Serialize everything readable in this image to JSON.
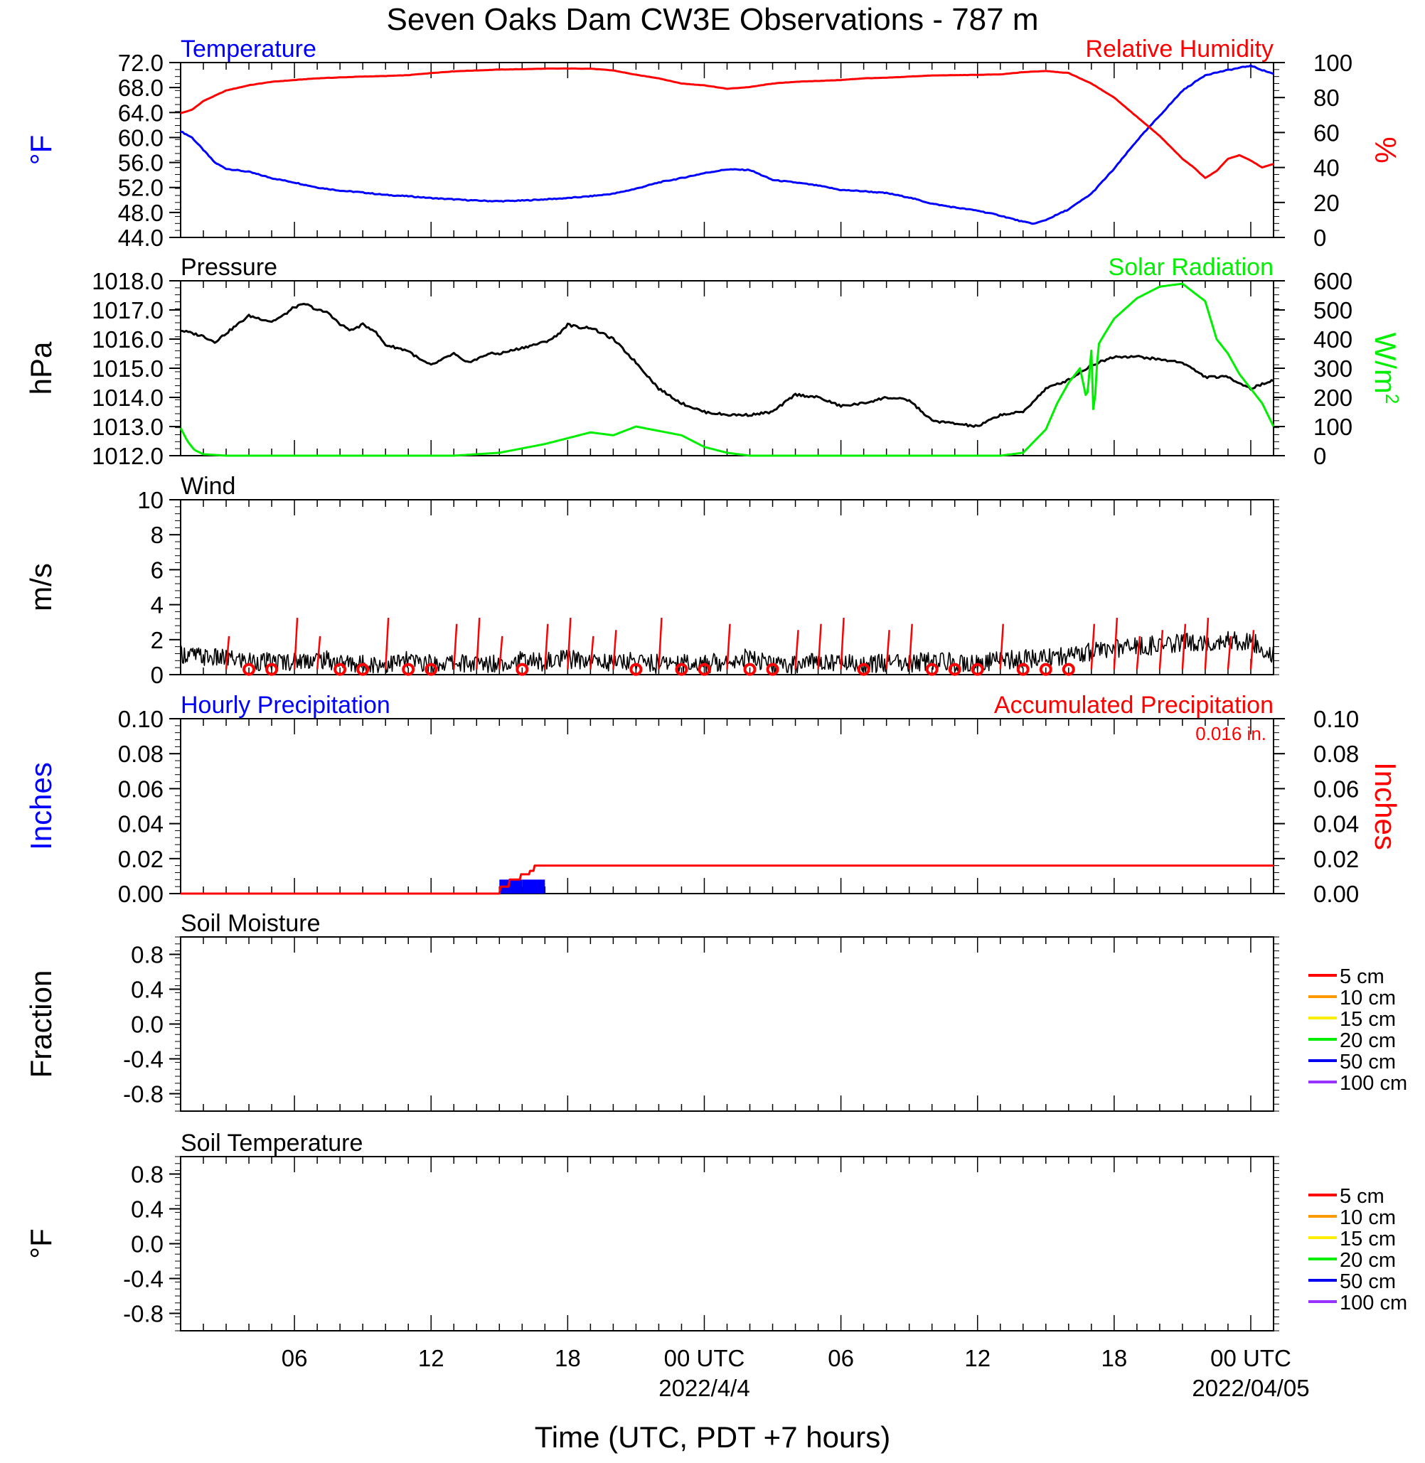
{
  "page": {
    "title": "Seven Oaks Dam CW3E Observations - 787 m",
    "xlabel": "Time (UTC, PDT +7 hours)"
  },
  "colors": {
    "black": "#000000",
    "red": "#ff0000",
    "blue": "#0000ff",
    "green": "#00ee00",
    "depth_5": "#ff0000",
    "depth_10": "#ff9900",
    "depth_15": "#ffee00",
    "depth_20": "#00ee00",
    "depth_50": "#0000ee",
    "depth_100": "#9933ff"
  },
  "time_axis": {
    "range_hours": [
      0,
      48
    ],
    "tick_labels": [
      {
        "hour": 5,
        "label": "06"
      },
      {
        "hour": 11,
        "label": "12"
      },
      {
        "hour": 17,
        "label": "18"
      },
      {
        "hour": 23,
        "label": "00 UTC",
        "sublabel": "2022/4/4"
      },
      {
        "hour": 29,
        "label": "06"
      },
      {
        "hour": 35,
        "label": "12"
      },
      {
        "hour": 41,
        "label": "18"
      },
      {
        "hour": 47,
        "label": "00 UTC",
        "sublabel": "2022/04/05"
      }
    ]
  },
  "chart_data": [
    {
      "panel": "temperature_humidity",
      "type": "line",
      "title_left": "Temperature",
      "title_right": "Relative Humidity",
      "ylabel_left": "°F",
      "ylabel_right": "%",
      "ylim_left": [
        44,
        72
      ],
      "ylim_right": [
        0,
        100
      ],
      "yticks_left": [
        "72.0",
        "68.0",
        "64.0",
        "60.0",
        "56.0",
        "52.0",
        "48.0",
        "44.0"
      ],
      "yticks_right": [
        "100",
        "80",
        "60",
        "40",
        "20",
        "0"
      ],
      "series": [
        {
          "name": "Temperature",
          "axis": "left",
          "color": "blue",
          "x": [
            0,
            0.5,
            1,
            1.5,
            2,
            3,
            4,
            5,
            6,
            7,
            8,
            9,
            10,
            11,
            12,
            13,
            14,
            15,
            16,
            17,
            18,
            19,
            20,
            21,
            22,
            23,
            24,
            25,
            25.5,
            26,
            27,
            28,
            29,
            30,
            31,
            32,
            33,
            34,
            35,
            36,
            37,
            37.5,
            38,
            39,
            40,
            41,
            42,
            43,
            44,
            45,
            46,
            47,
            47.5,
            48
          ],
          "y": [
            61.0,
            60.0,
            58.0,
            56.0,
            55.0,
            54.5,
            53.5,
            52.8,
            52.0,
            51.5,
            51.2,
            50.8,
            50.6,
            50.3,
            50.1,
            49.9,
            49.8,
            49.9,
            50.1,
            50.3,
            50.6,
            51.0,
            51.8,
            52.8,
            53.5,
            54.3,
            54.9,
            54.8,
            54.0,
            53.2,
            52.8,
            52.3,
            51.6,
            51.4,
            51.1,
            50.4,
            49.4,
            48.8,
            48.3,
            47.5,
            46.5,
            46.2,
            46.8,
            48.5,
            51.0,
            55.0,
            59.5,
            63.5,
            67.5,
            70.0,
            70.8,
            71.5,
            70.8,
            70.2
          ]
        },
        {
          "name": "Relative Humidity",
          "axis": "right",
          "color": "red",
          "x": [
            0,
            0.5,
            1,
            1.5,
            2,
            3,
            4,
            5,
            6,
            7,
            8,
            9,
            10,
            11,
            12,
            13,
            14,
            15,
            16,
            17,
            18,
            19,
            20,
            21,
            22,
            23,
            24,
            25,
            26,
            27,
            28,
            29,
            30,
            31,
            32,
            33,
            34,
            35,
            36,
            37,
            38,
            39,
            40,
            41,
            42,
            43,
            44,
            44.5,
            45,
            45.5,
            46,
            46.5,
            47,
            47.5,
            48
          ],
          "y": [
            71,
            73,
            78,
            81,
            84,
            87,
            89,
            90,
            91,
            91.5,
            92,
            92.3,
            92.8,
            94,
            95,
            95.5,
            96,
            96.2,
            96.5,
            96.6,
            96.5,
            95.5,
            93,
            91,
            88,
            87,
            85,
            86,
            88,
            89,
            89.5,
            90,
            91,
            91.3,
            92,
            92.6,
            92.8,
            93,
            93.2,
            94.5,
            95.2,
            94,
            88,
            80,
            69,
            58,
            45,
            40,
            34,
            38,
            45,
            47,
            44,
            40,
            42
          ]
        }
      ]
    },
    {
      "panel": "pressure_solar",
      "type": "line",
      "title_left": "Pressure",
      "title_right": "Solar Radiation",
      "ylabel_left": "hPa",
      "ylabel_right": "W/m",
      "ylabel_right_sup": "2",
      "ylim_left": [
        1012,
        1018
      ],
      "ylim_right": [
        0,
        600
      ],
      "yticks_left": [
        "1018.0",
        "1017.0",
        "1016.0",
        "1015.0",
        "1014.0",
        "1013.0",
        "1012.0"
      ],
      "yticks_right": [
        "600",
        "500",
        "400",
        "300",
        "200",
        "100",
        "0"
      ],
      "series": [
        {
          "name": "Pressure",
          "axis": "left",
          "color": "black",
          "x": [
            0,
            0.5,
            1,
            1.5,
            2,
            2.5,
            3,
            3.5,
            4,
            4.5,
            5,
            5.5,
            6,
            6.5,
            7,
            7.5,
            8,
            8.5,
            9,
            9.5,
            10,
            10.5,
            11,
            11.5,
            12,
            12.5,
            13,
            13.5,
            14,
            15,
            16,
            16.5,
            17,
            17.5,
            18,
            19,
            20,
            21,
            22,
            23,
            24,
            25,
            26,
            27,
            28,
            29,
            30,
            31,
            32,
            33,
            34,
            35,
            36,
            37,
            38,
            39,
            40,
            41,
            42,
            43,
            44,
            45,
            46,
            47,
            48
          ],
          "y": [
            1016.3,
            1016.2,
            1016.1,
            1015.9,
            1016.2,
            1016.5,
            1016.8,
            1016.7,
            1016.6,
            1016.8,
            1017.1,
            1017.2,
            1017.0,
            1016.9,
            1016.5,
            1016.3,
            1016.5,
            1016.3,
            1015.8,
            1015.7,
            1015.6,
            1015.3,
            1015.1,
            1015.3,
            1015.5,
            1015.2,
            1015.3,
            1015.5,
            1015.5,
            1015.7,
            1015.9,
            1016.1,
            1016.5,
            1016.4,
            1016.4,
            1016.0,
            1015.2,
            1014.3,
            1013.8,
            1013.5,
            1013.4,
            1013.4,
            1013.5,
            1014.1,
            1014.0,
            1013.7,
            1013.8,
            1014.0,
            1013.9,
            1013.2,
            1013.1,
            1013.0,
            1013.4,
            1013.5,
            1014.3,
            1014.6,
            1015.1,
            1015.4,
            1015.4,
            1015.3,
            1015.2,
            1014.7,
            1014.7,
            1014.3,
            1014.6
          ]
        },
        {
          "name": "Solar Radiation",
          "axis": "right",
          "color": "green",
          "x": [
            0,
            0.3,
            0.6,
            1,
            2,
            10,
            12,
            14,
            16,
            17,
            18,
            19,
            20,
            21,
            22,
            23,
            24,
            25,
            26,
            34,
            36,
            37,
            38,
            38.5,
            39,
            39.5,
            39.8,
            40,
            40.1,
            40.3,
            40.6,
            41,
            42,
            43,
            44,
            44.5,
            45,
            45.5,
            46,
            46.5,
            47,
            47.5,
            48
          ],
          "y": [
            95,
            50,
            20,
            5,
            0,
            0,
            0,
            10,
            40,
            60,
            80,
            70,
            100,
            85,
            70,
            30,
            10,
            0,
            0,
            0,
            0,
            10,
            90,
            180,
            250,
            300,
            190,
            360,
            120,
            380,
            420,
            470,
            540,
            580,
            590,
            560,
            530,
            400,
            350,
            280,
            230,
            180,
            100
          ]
        }
      ]
    },
    {
      "panel": "wind",
      "type": "line",
      "title_left": "Wind",
      "ylabel_left": "m/s",
      "ylim_left": [
        0,
        10
      ],
      "yticks_left": [
        "10",
        "8",
        "6",
        "4",
        "2",
        "0"
      ],
      "series": [
        {
          "name": "Wind",
          "axis": "left",
          "color": "black",
          "x": [
            0,
            1,
            2,
            3,
            4,
            5,
            6,
            7,
            8,
            9,
            10,
            11,
            12,
            13,
            14,
            15,
            16,
            17,
            18,
            19,
            20,
            21,
            22,
            23,
            24,
            25,
            26,
            27,
            28,
            29,
            30,
            31,
            32,
            33,
            34,
            35,
            36,
            37,
            38,
            39,
            40,
            41,
            42,
            43,
            44,
            45,
            46,
            47,
            48
          ],
          "y": [
            1.2,
            1.0,
            0.9,
            0.8,
            0.7,
            0.8,
            0.9,
            0.7,
            0.6,
            0.6,
            0.8,
            0.6,
            0.7,
            0.6,
            0.7,
            0.8,
            0.7,
            0.9,
            0.8,
            0.7,
            0.8,
            0.6,
            0.7,
            0.6,
            0.8,
            1.0,
            0.5,
            0.6,
            0.8,
            0.7,
            0.6,
            0.7,
            0.6,
            0.8,
            0.7,
            0.6,
            0.8,
            0.9,
            1.0,
            1.1,
            1.3,
            1.5,
            1.6,
            1.7,
            1.8,
            1.9,
            2.0,
            1.9,
            1.2
          ]
        }
      ],
      "wind_barbs": {
        "color": "red",
        "hours": [
          2,
          3,
          4,
          5,
          6,
          7,
          8,
          9,
          10,
          11,
          12,
          13,
          14,
          15,
          16,
          17,
          18,
          19,
          20,
          21,
          22,
          23,
          24,
          25,
          26,
          27,
          28,
          29,
          30,
          31,
          32,
          33,
          34,
          35,
          36,
          37,
          38,
          39,
          40,
          41,
          42,
          43,
          44,
          45,
          46,
          47
        ],
        "calm": [
          false,
          true,
          true,
          false,
          false,
          true,
          true,
          false,
          true,
          true,
          false,
          false,
          false,
          true,
          false,
          false,
          false,
          false,
          true,
          false,
          true,
          true,
          false,
          true,
          true,
          false,
          false,
          false,
          true,
          false,
          false,
          true,
          true,
          true,
          false,
          true,
          true,
          true,
          false,
          false,
          false,
          false,
          false,
          false,
          false,
          false
        ]
      }
    },
    {
      "panel": "precipitation",
      "type": "bar",
      "title_left": "Hourly Precipitation",
      "title_right": "Accumulated Precipitation",
      "annotation": "0.016 in.",
      "ylabel_left": "Inches",
      "ylabel_right": "Inches",
      "ylim_left": [
        0,
        0.1
      ],
      "ylim_right": [
        0,
        0.1
      ],
      "yticks_left": [
        "0.10",
        "0.08",
        "0.06",
        "0.04",
        "0.02",
        "0.00"
      ],
      "yticks_right": [
        "0.10",
        "0.08",
        "0.06",
        "0.04",
        "0.02",
        "0.00"
      ],
      "hourly_bars": [
        {
          "start": 14,
          "end": 15,
          "value": 0.008,
          "color": "blue"
        },
        {
          "start": 15,
          "end": 16,
          "value": 0.008,
          "color": "blue"
        }
      ],
      "series": [
        {
          "name": "Accumulated Precipitation",
          "axis": "right",
          "color": "red",
          "x": [
            0,
            14,
            14.05,
            14.4,
            14.45,
            14.9,
            14.95,
            15.3,
            15.35,
            15.5,
            15.55,
            48
          ],
          "y": [
            0,
            0,
            0.004,
            0.004,
            0.008,
            0.008,
            0.011,
            0.011,
            0.013,
            0.013,
            0.016,
            0.016
          ]
        }
      ]
    },
    {
      "panel": "soil_moisture",
      "type": "line",
      "title_left": "Soil Moisture",
      "ylabel_left": "Fraction",
      "ylim_left": [
        -1,
        1
      ],
      "yticks_left": [
        "0.8",
        "0.4",
        "0.0",
        "-0.4",
        "-0.8"
      ],
      "legend": [
        {
          "label": "5 cm",
          "color": "depth_5"
        },
        {
          "label": "10 cm",
          "color": "depth_10"
        },
        {
          "label": "15 cm",
          "color": "depth_15"
        },
        {
          "label": "20 cm",
          "color": "depth_20"
        },
        {
          "label": "50 cm",
          "color": "depth_50"
        },
        {
          "label": "100 cm",
          "color": "depth_100"
        }
      ],
      "series": []
    },
    {
      "panel": "soil_temperature",
      "type": "line",
      "title_left": "Soil Temperature",
      "ylabel_left": "°F",
      "ylim_left": [
        -1,
        1
      ],
      "yticks_left": [
        "0.8",
        "0.4",
        "0.0",
        "-0.4",
        "-0.8"
      ],
      "legend": [
        {
          "label": "5 cm",
          "color": "depth_5"
        },
        {
          "label": "10 cm",
          "color": "depth_10"
        },
        {
          "label": "15 cm",
          "color": "depth_15"
        },
        {
          "label": "20 cm",
          "color": "depth_20"
        },
        {
          "label": "50 cm",
          "color": "depth_50"
        },
        {
          "label": "100 cm",
          "color": "depth_100"
        }
      ],
      "series": []
    }
  ]
}
